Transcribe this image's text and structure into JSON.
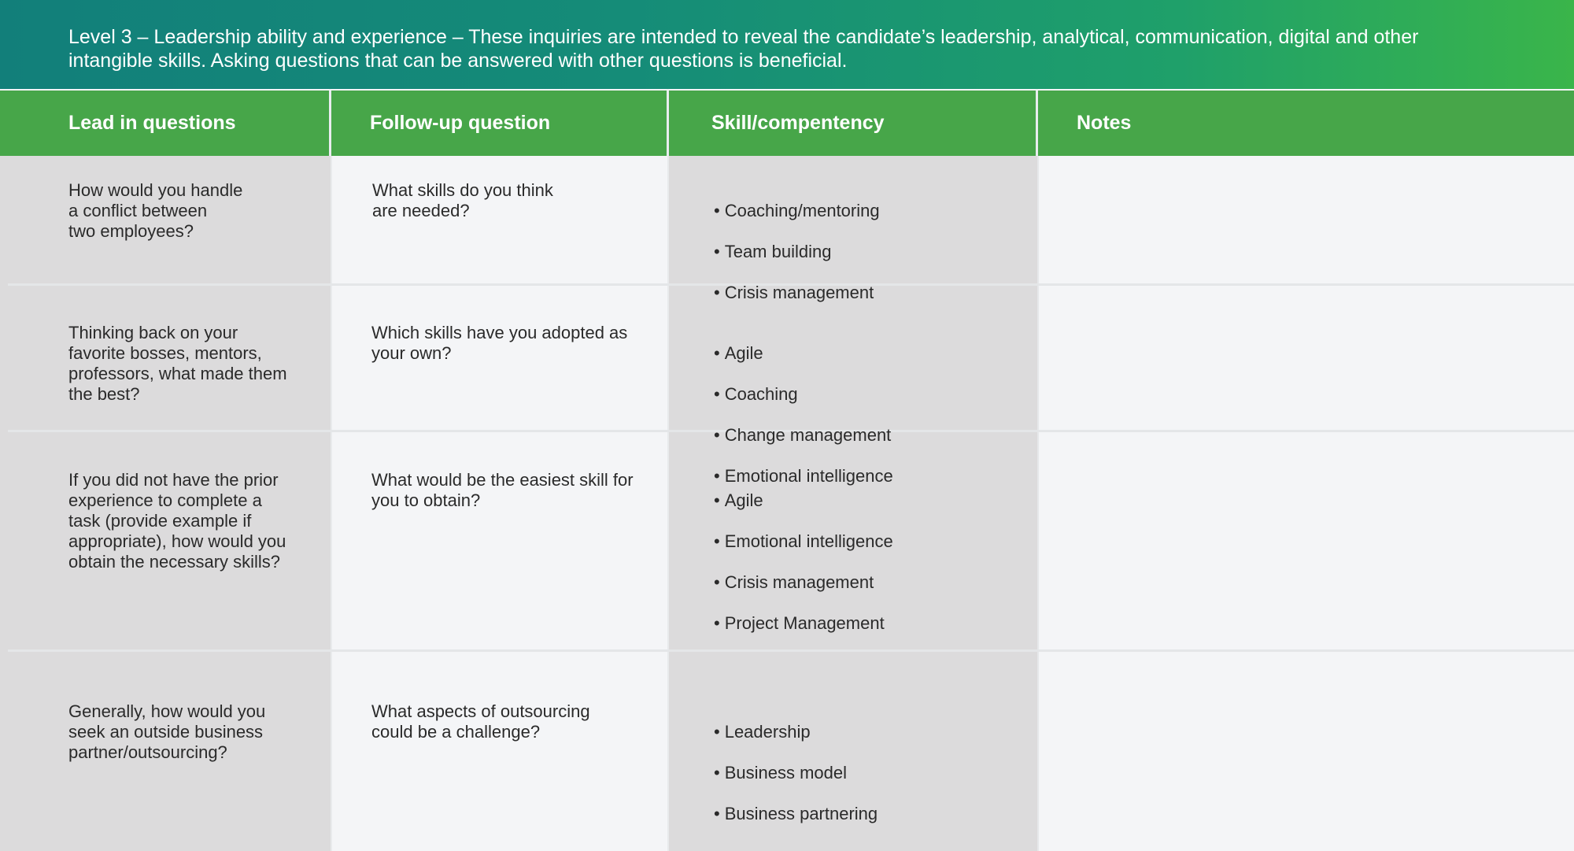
{
  "banner": {
    "text": "Level 3  – Leadership ability and experience – These inquiries are intended to reveal the candidate’s leadership, analytical, communication, digital and other intangible skills. Asking questions that can be answered with other questions is beneficial."
  },
  "table": {
    "headers": [
      "Lead in questions",
      "Follow-up question",
      "Skill/compentency",
      "Notes"
    ],
    "rows": [
      {
        "lead": "How would you handle\na conflict between\ntwo employees?",
        "followup": "What skills do you think\nare needed?",
        "skills": [
          "Coaching/mentoring",
          "Team building",
          "Crisis management"
        ],
        "notes": ""
      },
      {
        "lead": "Thinking back on your\nfavorite bosses, mentors,\nprofessors, what made them\nthe best?",
        "followup": "Which skills have you adopted as\nyour own?",
        "skills": [
          "Agile",
          "Coaching",
          "Change management",
          "Emotional intelligence"
        ],
        "notes": ""
      },
      {
        "lead": "If you did not have the prior\nexperience to complete a\ntask (provide example if\nappropriate), how would you\nobtain the necessary skills?",
        "followup": "What would be the easiest skill for\nyou to obtain?",
        "skills": [
          "Agile",
          "Emotional intelligence",
          "Crisis management",
          "Project Management"
        ],
        "notes": ""
      },
      {
        "lead": "Generally, how would you\nseek an outside business\npartner/outsourcing?",
        "followup": "What aspects of outsourcing\ncould be a challenge?",
        "skills": [
          "Leadership",
          "Business model",
          "Business partnering"
        ],
        "notes": ""
      }
    ],
    "bullet_char": "•"
  }
}
